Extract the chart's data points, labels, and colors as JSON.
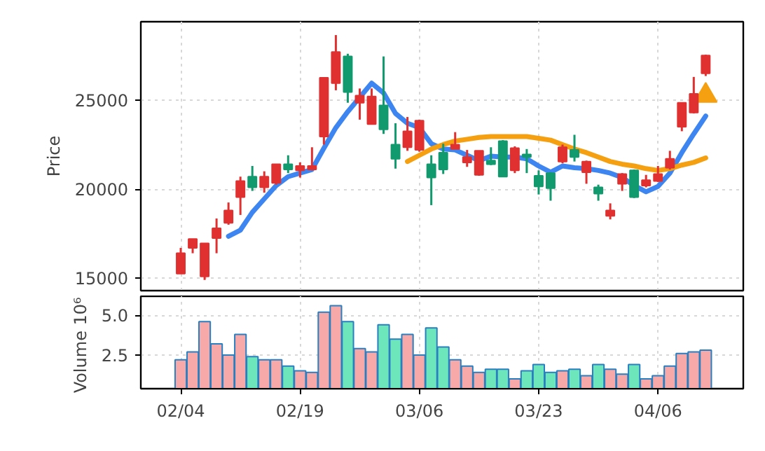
{
  "chart_data": [
    {
      "type": "candlestick",
      "ylabel": "Price",
      "categories": [
        null,
        null,
        null,
        null,
        null,
        null,
        null,
        null,
        null,
        null,
        null,
        null,
        null,
        null,
        null,
        null,
        null,
        null,
        null,
        null,
        null,
        null,
        null,
        null,
        null,
        null,
        null,
        null,
        null,
        null,
        null,
        null,
        null,
        null,
        null,
        null,
        null,
        null,
        null,
        null,
        null,
        null,
        null,
        null,
        null
      ],
      "ohlc": [
        [
          15250,
          16700,
          15250,
          16400
        ],
        [
          16700,
          17200,
          16400,
          17200
        ],
        [
          15100,
          16950,
          14900,
          16950
        ],
        [
          17250,
          18350,
          16400,
          17800
        ],
        [
          18100,
          19250,
          18000,
          18800
        ],
        [
          19550,
          20700,
          18550,
          20450
        ],
        [
          20700,
          21300,
          19900,
          20100
        ],
        [
          20100,
          21000,
          19800,
          20700
        ],
        [
          20350,
          21400,
          20250,
          21400
        ],
        [
          21400,
          21900,
          20900,
          21100
        ],
        [
          21050,
          21500,
          20650,
          21300
        ],
        [
          21100,
          22350,
          21050,
          21300
        ],
        [
          22950,
          26250,
          22500,
          26250
        ],
        [
          25950,
          28650,
          25550,
          27700
        ],
        [
          27450,
          27600,
          24850,
          25450
        ],
        [
          24850,
          25650,
          23900,
          25250
        ],
        [
          23650,
          25650,
          23650,
          25200
        ],
        [
          24700,
          27450,
          23100,
          23350
        ],
        [
          22500,
          23700,
          21150,
          21700
        ],
        [
          22350,
          24050,
          22150,
          23250
        ],
        [
          22200,
          23900,
          22100,
          23850
        ],
        [
          21400,
          21900,
          19100,
          20650
        ],
        [
          22050,
          22550,
          20850,
          21100
        ],
        [
          22250,
          23200,
          22250,
          22500
        ],
        [
          21500,
          22200,
          21250,
          21800
        ],
        [
          20800,
          22150,
          20750,
          22150
        ],
        [
          21600,
          22350,
          21350,
          21400
        ],
        [
          22700,
          22750,
          20700,
          20700
        ],
        [
          21050,
          22400,
          20900,
          22300
        ],
        [
          21950,
          22250,
          20900,
          21800
        ],
        [
          20750,
          21050,
          19700,
          20150
        ],
        [
          20900,
          20950,
          19350,
          20050
        ],
        [
          21550,
          22500,
          21450,
          22350
        ],
        [
          22200,
          23050,
          21550,
          21800
        ],
        [
          20950,
          21600,
          20300,
          21550
        ],
        [
          20100,
          20250,
          19350,
          19750
        ],
        [
          18500,
          19200,
          18300,
          18800
        ],
        [
          20300,
          20900,
          19900,
          20850
        ],
        [
          21050,
          21100,
          19500,
          19550
        ],
        [
          20200,
          20800,
          20100,
          20500
        ],
        [
          20450,
          21300,
          20400,
          20850
        ],
        [
          21200,
          22150,
          21100,
          21700
        ],
        [
          23500,
          24850,
          23250,
          24850
        ],
        [
          24300,
          26300,
          24250,
          25350
        ],
        [
          26500,
          27550,
          26350,
          27500
        ]
      ],
      "colors": [
        "#e03030",
        "#e03030",
        "#e03030",
        "#e03030",
        "#e03030",
        "#e03030",
        "#109a6e",
        "#e03030",
        "#e03030",
        "#109a6e",
        "#e03030",
        "#e03030",
        "#e03030",
        "#e03030",
        "#109a6e",
        "#e03030",
        "#e03030",
        "#109a6e",
        "#109a6e",
        "#e03030",
        "#e03030",
        "#109a6e",
        "#109a6e",
        "#e03030",
        "#e03030",
        "#e03030",
        "#109a6e",
        "#109a6e",
        "#e03030",
        "#109a6e",
        "#109a6e",
        "#109a6e",
        "#e03030",
        "#109a6e",
        "#e03030",
        "#109a6e",
        "#e03030",
        "#e03030",
        "#109a6e",
        "#e03030",
        "#e03030",
        "#e03030",
        "#e03030",
        "#e03030",
        "#e03030"
      ],
      "series": [
        {
          "type": "line",
          "color": "#3d85f0",
          "values": [
            null,
            null,
            null,
            null,
            17350,
            17700,
            18700,
            19450,
            20200,
            20700,
            20900,
            21100,
            22300,
            23450,
            24350,
            25150,
            25950,
            25400,
            24250,
            23700,
            23450,
            22550,
            22250,
            22200,
            21900,
            21600,
            21850,
            21800,
            21800,
            21700,
            21300,
            20950,
            21300,
            21200,
            21150,
            21050,
            20900,
            20650,
            20200,
            19850,
            20150,
            20900,
            22050,
            23100,
            24100
          ]
        },
        {
          "type": "line",
          "color": "#f5a010",
          "values": [
            null,
            null,
            null,
            null,
            null,
            null,
            null,
            null,
            null,
            null,
            null,
            null,
            null,
            null,
            null,
            null,
            null,
            null,
            null,
            21550,
            21900,
            22250,
            22500,
            22700,
            22800,
            22900,
            22950,
            22950,
            22950,
            22950,
            22850,
            22750,
            22500,
            22250,
            22050,
            21800,
            21550,
            21400,
            21300,
            21150,
            21050,
            21150,
            21350,
            21500,
            21750
          ]
        },
        {
          "type": "scatter",
          "marker": "triangle",
          "color": "#f5a010",
          "values": [
            null,
            null,
            null,
            null,
            null,
            null,
            null,
            null,
            null,
            null,
            null,
            null,
            null,
            null,
            null,
            null,
            null,
            null,
            null,
            null,
            null,
            null,
            null,
            null,
            null,
            null,
            null,
            null,
            null,
            null,
            null,
            null,
            null,
            null,
            null,
            null,
            null,
            null,
            null,
            null,
            null,
            null,
            null,
            null,
            25250
          ]
        }
      ],
      "ylim": [
        14300,
        29400
      ],
      "yticks": [
        15000,
        20000,
        25000
      ],
      "tick_labels": "y",
      "grid": true
    },
    {
      "type": "bar",
      "ylabel": "Volume",
      "annotations": [
        "10⁶"
      ],
      "categories": [
        "02/04",
        null,
        null,
        null,
        null,
        null,
        null,
        null,
        null,
        null,
        "02/19",
        null,
        null,
        null,
        null,
        null,
        null,
        null,
        null,
        null,
        "03/06",
        null,
        null,
        null,
        null,
        null,
        null,
        null,
        null,
        null,
        "03/23",
        null,
        null,
        null,
        null,
        null,
        null,
        null,
        null,
        null,
        "04/06",
        null,
        null,
        null,
        null
      ],
      "values": [
        2.2,
        2.7,
        4.6,
        3.2,
        2.5,
        3.8,
        2.4,
        2.2,
        2.2,
        1.8,
        1.5,
        1.4,
        5.2,
        5.6,
        4.6,
        2.9,
        2.7,
        4.4,
        3.5,
        3.8,
        2.5,
        4.2,
        3.0,
        2.2,
        1.8,
        1.4,
        1.6,
        1.6,
        1.0,
        1.5,
        1.9,
        1.4,
        1.5,
        1.6,
        1.2,
        1.9,
        1.6,
        1.3,
        1.9,
        1.0,
        1.2,
        1.8,
        2.6,
        2.7,
        2.8
      ],
      "colors": [
        "#f7a8a8",
        "#f7a8a8",
        "#f7a8a8",
        "#f7a8a8",
        "#f7a8a8",
        "#f7a8a8",
        "#6ee6bb",
        "#f7a8a8",
        "#f7a8a8",
        "#6ee6bb",
        "#f7a8a8",
        "#f7a8a8",
        "#f7a8a8",
        "#f7a8a8",
        "#6ee6bb",
        "#f7a8a8",
        "#f7a8a8",
        "#6ee6bb",
        "#6ee6bb",
        "#f7a8a8",
        "#f7a8a8",
        "#6ee6bb",
        "#6ee6bb",
        "#f7a8a8",
        "#f7a8a8",
        "#f7a8a8",
        "#6ee6bb",
        "#6ee6bb",
        "#f7a8a8",
        "#6ee6bb",
        "#6ee6bb",
        "#6ee6bb",
        "#f7a8a8",
        "#6ee6bb",
        "#f7a8a8",
        "#6ee6bb",
        "#f7a8a8",
        "#f7a8a8",
        "#6ee6bb",
        "#f7a8a8",
        "#f7a8a8",
        "#f7a8a8",
        "#f7a8a8",
        "#f7a8a8",
        "#f7a8a8"
      ],
      "ylim": [
        0.38,
        6.2
      ],
      "yticks": [
        {
          "value": 2.5,
          "label": "2.5"
        },
        {
          "value": 5,
          "label": "5.0"
        }
      ],
      "grid": true
    }
  ]
}
